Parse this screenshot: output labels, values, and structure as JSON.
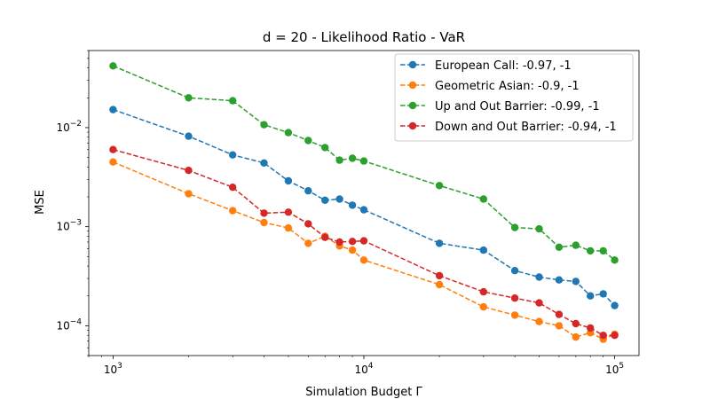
{
  "chart_data": {
    "type": "line",
    "title": "d = 20 - Likelihood Ratio - VaR",
    "xlabel": "Simulation Budget Γ",
    "ylabel": "MSE",
    "xscale": "log",
    "yscale": "log",
    "xlim": [
      800,
      125000
    ],
    "ylim": [
      5e-05,
      0.06
    ],
    "x_ticks": [
      {
        "value": 1000,
        "base": "10",
        "exp": "3"
      },
      {
        "value": 10000,
        "base": "10",
        "exp": "4"
      },
      {
        "value": 100000,
        "base": "10",
        "exp": "5"
      }
    ],
    "y_ticks": [
      {
        "value": 0.0001,
        "base": "10",
        "exp": "−4"
      },
      {
        "value": 0.001,
        "base": "10",
        "exp": "−3"
      },
      {
        "value": 0.01,
        "base": "10",
        "exp": "−2"
      }
    ],
    "grid": false,
    "legend_position": "top-right",
    "x": [
      1000,
      2000,
      3000,
      4000,
      5000,
      6000,
      7000,
      8000,
      9000,
      10000,
      20000,
      30000,
      40000,
      50000,
      60000,
      70000,
      80000,
      90000,
      100000
    ],
    "series": [
      {
        "name": "European Call: -0.97, -1",
        "color": "#1f77b4",
        "values": [
          0.0152,
          0.0082,
          0.0053,
          0.0044,
          0.0029,
          0.0023,
          0.00185,
          0.0019,
          0.00165,
          0.00148,
          0.00068,
          0.00058,
          0.00036,
          0.00031,
          0.00029,
          0.00028,
          0.0002,
          0.00021,
          0.00016
        ]
      },
      {
        "name": "Geometric Asian: -0.9, -1",
        "color": "#ff7f0e",
        "values": [
          0.0045,
          0.00215,
          0.00145,
          0.0011,
          0.00097,
          0.00068,
          0.0008,
          0.00064,
          0.00058,
          0.00046,
          0.00026,
          0.000155,
          0.000128,
          0.00011,
          0.0001,
          7.7e-05,
          8.5e-05,
          7.3e-05,
          8.2e-05
        ]
      },
      {
        "name": "Up and Out Barrier: -0.99, -1",
        "color": "#2ca02c",
        "values": [
          0.042,
          0.02,
          0.0187,
          0.0107,
          0.0089,
          0.0074,
          0.0063,
          0.0047,
          0.0049,
          0.0046,
          0.0026,
          0.0019,
          0.00098,
          0.00095,
          0.00062,
          0.00065,
          0.00057,
          0.00057,
          0.00046
        ]
      },
      {
        "name": "Down and Out Barrier: -0.94, -1",
        "color": "#d62728",
        "values": [
          0.006,
          0.0037,
          0.0025,
          0.00137,
          0.0014,
          0.00107,
          0.00078,
          0.0007,
          0.00071,
          0.00072,
          0.00032,
          0.00022,
          0.00019,
          0.00017,
          0.00013,
          0.000105,
          9.5e-05,
          8e-05,
          8e-05
        ]
      }
    ]
  }
}
